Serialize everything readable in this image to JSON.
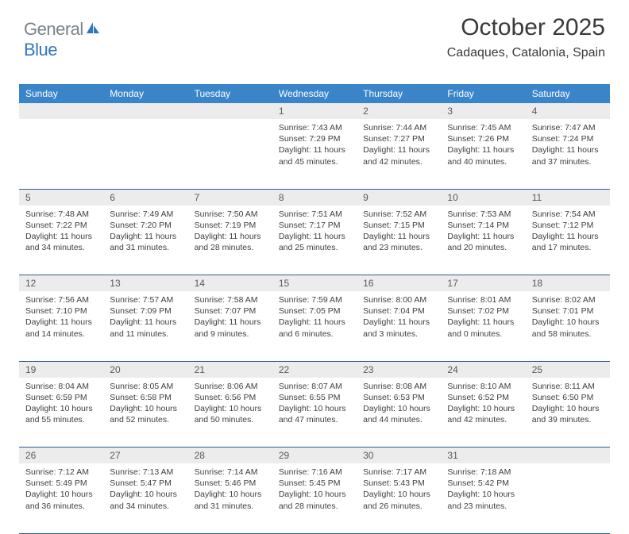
{
  "logo": {
    "part1": "General",
    "part2": "Blue"
  },
  "header": {
    "month_title": "October 2025",
    "location": "Cadaques, Catalonia, Spain"
  },
  "colors": {
    "header_bg": "#3a85c9",
    "header_text": "#ffffff",
    "daynum_bg": "#ececec",
    "row_divider": "#2b5f93",
    "body_text": "#3f3f3f",
    "logo_gray": "#7b8288",
    "logo_blue": "#2f78bc"
  },
  "dow": [
    "Sunday",
    "Monday",
    "Tuesday",
    "Wednesday",
    "Thursday",
    "Friday",
    "Saturday"
  ],
  "weeks": [
    [
      null,
      null,
      null,
      {
        "n": "1",
        "sr": "Sunrise: 7:43 AM",
        "ss": "Sunset: 7:29 PM",
        "d1": "Daylight: 11 hours",
        "d2": "and 45 minutes."
      },
      {
        "n": "2",
        "sr": "Sunrise: 7:44 AM",
        "ss": "Sunset: 7:27 PM",
        "d1": "Daylight: 11 hours",
        "d2": "and 42 minutes."
      },
      {
        "n": "3",
        "sr": "Sunrise: 7:45 AM",
        "ss": "Sunset: 7:26 PM",
        "d1": "Daylight: 11 hours",
        "d2": "and 40 minutes."
      },
      {
        "n": "4",
        "sr": "Sunrise: 7:47 AM",
        "ss": "Sunset: 7:24 PM",
        "d1": "Daylight: 11 hours",
        "d2": "and 37 minutes."
      }
    ],
    [
      {
        "n": "5",
        "sr": "Sunrise: 7:48 AM",
        "ss": "Sunset: 7:22 PM",
        "d1": "Daylight: 11 hours",
        "d2": "and 34 minutes."
      },
      {
        "n": "6",
        "sr": "Sunrise: 7:49 AM",
        "ss": "Sunset: 7:20 PM",
        "d1": "Daylight: 11 hours",
        "d2": "and 31 minutes."
      },
      {
        "n": "7",
        "sr": "Sunrise: 7:50 AM",
        "ss": "Sunset: 7:19 PM",
        "d1": "Daylight: 11 hours",
        "d2": "and 28 minutes."
      },
      {
        "n": "8",
        "sr": "Sunrise: 7:51 AM",
        "ss": "Sunset: 7:17 PM",
        "d1": "Daylight: 11 hours",
        "d2": "and 25 minutes."
      },
      {
        "n": "9",
        "sr": "Sunrise: 7:52 AM",
        "ss": "Sunset: 7:15 PM",
        "d1": "Daylight: 11 hours",
        "d2": "and 23 minutes."
      },
      {
        "n": "10",
        "sr": "Sunrise: 7:53 AM",
        "ss": "Sunset: 7:14 PM",
        "d1": "Daylight: 11 hours",
        "d2": "and 20 minutes."
      },
      {
        "n": "11",
        "sr": "Sunrise: 7:54 AM",
        "ss": "Sunset: 7:12 PM",
        "d1": "Daylight: 11 hours",
        "d2": "and 17 minutes."
      }
    ],
    [
      {
        "n": "12",
        "sr": "Sunrise: 7:56 AM",
        "ss": "Sunset: 7:10 PM",
        "d1": "Daylight: 11 hours",
        "d2": "and 14 minutes."
      },
      {
        "n": "13",
        "sr": "Sunrise: 7:57 AM",
        "ss": "Sunset: 7:09 PM",
        "d1": "Daylight: 11 hours",
        "d2": "and 11 minutes."
      },
      {
        "n": "14",
        "sr": "Sunrise: 7:58 AM",
        "ss": "Sunset: 7:07 PM",
        "d1": "Daylight: 11 hours",
        "d2": "and 9 minutes."
      },
      {
        "n": "15",
        "sr": "Sunrise: 7:59 AM",
        "ss": "Sunset: 7:05 PM",
        "d1": "Daylight: 11 hours",
        "d2": "and 6 minutes."
      },
      {
        "n": "16",
        "sr": "Sunrise: 8:00 AM",
        "ss": "Sunset: 7:04 PM",
        "d1": "Daylight: 11 hours",
        "d2": "and 3 minutes."
      },
      {
        "n": "17",
        "sr": "Sunrise: 8:01 AM",
        "ss": "Sunset: 7:02 PM",
        "d1": "Daylight: 11 hours",
        "d2": "and 0 minutes."
      },
      {
        "n": "18",
        "sr": "Sunrise: 8:02 AM",
        "ss": "Sunset: 7:01 PM",
        "d1": "Daylight: 10 hours",
        "d2": "and 58 minutes."
      }
    ],
    [
      {
        "n": "19",
        "sr": "Sunrise: 8:04 AM",
        "ss": "Sunset: 6:59 PM",
        "d1": "Daylight: 10 hours",
        "d2": "and 55 minutes."
      },
      {
        "n": "20",
        "sr": "Sunrise: 8:05 AM",
        "ss": "Sunset: 6:58 PM",
        "d1": "Daylight: 10 hours",
        "d2": "and 52 minutes."
      },
      {
        "n": "21",
        "sr": "Sunrise: 8:06 AM",
        "ss": "Sunset: 6:56 PM",
        "d1": "Daylight: 10 hours",
        "d2": "and 50 minutes."
      },
      {
        "n": "22",
        "sr": "Sunrise: 8:07 AM",
        "ss": "Sunset: 6:55 PM",
        "d1": "Daylight: 10 hours",
        "d2": "and 47 minutes."
      },
      {
        "n": "23",
        "sr": "Sunrise: 8:08 AM",
        "ss": "Sunset: 6:53 PM",
        "d1": "Daylight: 10 hours",
        "d2": "and 44 minutes."
      },
      {
        "n": "24",
        "sr": "Sunrise: 8:10 AM",
        "ss": "Sunset: 6:52 PM",
        "d1": "Daylight: 10 hours",
        "d2": "and 42 minutes."
      },
      {
        "n": "25",
        "sr": "Sunrise: 8:11 AM",
        "ss": "Sunset: 6:50 PM",
        "d1": "Daylight: 10 hours",
        "d2": "and 39 minutes."
      }
    ],
    [
      {
        "n": "26",
        "sr": "Sunrise: 7:12 AM",
        "ss": "Sunset: 5:49 PM",
        "d1": "Daylight: 10 hours",
        "d2": "and 36 minutes."
      },
      {
        "n": "27",
        "sr": "Sunrise: 7:13 AM",
        "ss": "Sunset: 5:47 PM",
        "d1": "Daylight: 10 hours",
        "d2": "and 34 minutes."
      },
      {
        "n": "28",
        "sr": "Sunrise: 7:14 AM",
        "ss": "Sunset: 5:46 PM",
        "d1": "Daylight: 10 hours",
        "d2": "and 31 minutes."
      },
      {
        "n": "29",
        "sr": "Sunrise: 7:16 AM",
        "ss": "Sunset: 5:45 PM",
        "d1": "Daylight: 10 hours",
        "d2": "and 28 minutes."
      },
      {
        "n": "30",
        "sr": "Sunrise: 7:17 AM",
        "ss": "Sunset: 5:43 PM",
        "d1": "Daylight: 10 hours",
        "d2": "and 26 minutes."
      },
      {
        "n": "31",
        "sr": "Sunrise: 7:18 AM",
        "ss": "Sunset: 5:42 PM",
        "d1": "Daylight: 10 hours",
        "d2": "and 23 minutes."
      },
      null
    ]
  ]
}
